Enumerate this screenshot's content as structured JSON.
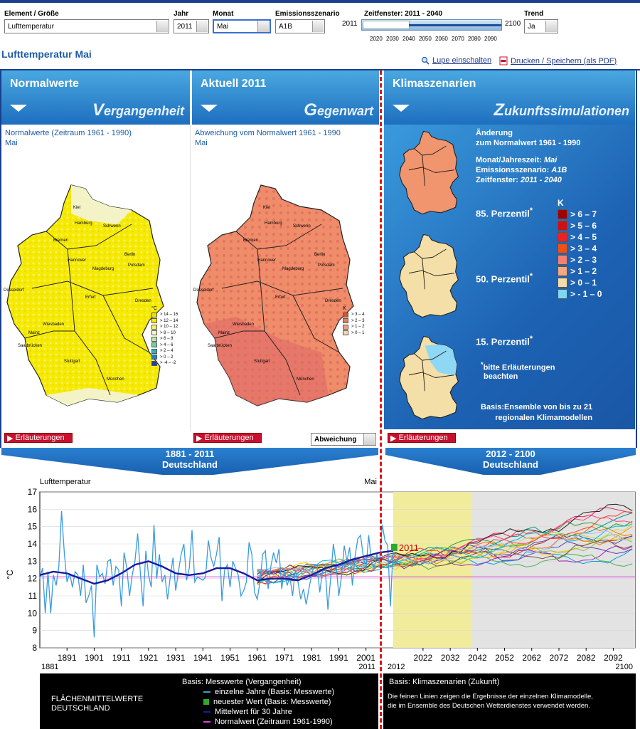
{
  "controls": {
    "element_label": "Element / Größe",
    "element_value": "Lufttemperatur",
    "year_label": "Jahr",
    "year_value": "2011",
    "month_label": "Monat",
    "month_value": "Mai",
    "scenario_label": "Emissionsszenario",
    "scenario_value": "A1B",
    "window_label": "Zeitfenster: 2011 - 2040",
    "window_min": "2011",
    "window_max": "2100",
    "window_ticks": [
      "2020",
      "2030",
      "2040",
      "2050",
      "2060",
      "2070",
      "2080",
      "2090"
    ],
    "trend_label": "Trend",
    "trend_value": "Ja"
  },
  "page_title": "Lufttemperatur Mai",
  "tools": {
    "zoom": "Lupe einschalten",
    "print": "Drucken / Speichern (als PDF)"
  },
  "panels": {
    "normal": {
      "title": "Normalwerte",
      "subtitle_first": "V",
      "subtitle_rest": "ergangenheit",
      "desc_line1": "Normalwerte (Zeitraum 1961 - 1990)",
      "desc_line2": "Mai",
      "unit": "°C",
      "legend": [
        "> 14 – 16",
        "> 12 – 14",
        "> 10 – 12",
        "> 8 – 10",
        "> 6 – 8",
        "> 4 – 6",
        "> 2 – 4",
        "> 0 – 2",
        "> -4 – -2"
      ]
    },
    "current": {
      "title": "Aktuell 2011",
      "subtitle_first": "G",
      "subtitle_rest": "egenwart",
      "desc_line1": "Abweichung vom Normalwert 1961 - 1990",
      "desc_line2": "Mai",
      "unit": "K",
      "legend": [
        "> 3 – 4",
        "> 2 – 3",
        "> 1 – 2",
        "> 0 – 1"
      ],
      "toggle": "Abweichung"
    },
    "climate": {
      "title": "Klimaszenarien",
      "subtitle_first": "Z",
      "subtitle_rest": "ukunftssimulationen",
      "change_line1": "Änderung",
      "change_line2": "zum Normalwert 1961 - 1990",
      "season_label": "Monat/Jahreszeit: ",
      "season_value": "Mai",
      "scenario_label": "Emissionsszenario: ",
      "scenario_value": "A1B",
      "window_label": "Zeitfenster: ",
      "window_value": "2011 - 2040",
      "p85": "85. Perzentil",
      "p50": "50. Perzentil",
      "p15": "15. Perzentil",
      "footnote_line1": "bitte Erläuterungen",
      "footnote_line2": "beachten",
      "basis_line1": "Basis:Ensemble von bis zu 21",
      "basis_line2": "regionalen Klimamodellen",
      "unit": "K",
      "legend": [
        "> 6 – 7",
        "> 5 – 6",
        "> 4 – 5",
        "> 3 – 4",
        "> 2 – 3",
        "> 1 – 2",
        "> 0 – 1",
        "> - 1 – 0"
      ]
    }
  },
  "explain_button": "Erläuterungen",
  "banner_left": {
    "line1": "1881 - 2011",
    "line2": "Deutschland"
  },
  "banner_right": {
    "line1": "2012 - 2100",
    "line2": "Deutschland"
  },
  "chart_data": {
    "type": "line",
    "title": "Lufttemperatur",
    "month": "Mai",
    "ylabel": "°C",
    "ylim": [
      8,
      17
    ],
    "xlim": [
      1881,
      2100
    ],
    "yticks": [
      8,
      9,
      10,
      11,
      12,
      13,
      14,
      15,
      16,
      17
    ],
    "xticks_past": [
      "1891",
      "1901",
      "1911",
      "1921",
      "1931",
      "1941",
      "1951",
      "1961",
      "1971",
      "1981",
      "1991",
      "2001"
    ],
    "xticks_future": [
      "2022",
      "2032",
      "2042",
      "2052",
      "2062",
      "2072",
      "2082",
      "2092"
    ],
    "x_start_label": "1881",
    "x_end_past_label": "2011",
    "x_start_future_label": "2012",
    "x_end_label": "2100",
    "latest_label": "2011",
    "normal_value": 12.1,
    "series": [
      {
        "name": "einzelne Jahre (Basis: Messwerte)",
        "x": [
          1881,
          1882,
          1883,
          1884,
          1885,
          1886,
          1887,
          1888,
          1889,
          1890,
          1891,
          1892,
          1893,
          1894,
          1895,
          1896,
          1897,
          1898,
          1899,
          1900,
          1901,
          1902,
          1903,
          1904,
          1905,
          1906,
          1907,
          1908,
          1909,
          1910,
          1911,
          1912,
          1913,
          1914,
          1915,
          1916,
          1917,
          1918,
          1919,
          1920,
          1921,
          1922,
          1923,
          1924,
          1925,
          1926,
          1927,
          1928,
          1929,
          1930,
          1931,
          1932,
          1933,
          1934,
          1935,
          1936,
          1937,
          1938,
          1939,
          1940,
          1941,
          1942,
          1943,
          1944,
          1945,
          1946,
          1947,
          1948,
          1949,
          1950,
          1951,
          1952,
          1953,
          1954,
          1955,
          1956,
          1957,
          1958,
          1959,
          1960,
          1961,
          1962,
          1963,
          1964,
          1965,
          1966,
          1967,
          1968,
          1969,
          1970,
          1971,
          1972,
          1973,
          1974,
          1975,
          1976,
          1977,
          1978,
          1979,
          1980,
          1981,
          1982,
          1983,
          1984,
          1985,
          1986,
          1987,
          1988,
          1989,
          1990,
          1991,
          1992,
          1993,
          1994,
          1995,
          1996,
          1997,
          1998,
          1999,
          2000,
          2001,
          2002,
          2003,
          2004,
          2005,
          2006,
          2007,
          2008,
          2009,
          2010,
          2011
        ],
        "values": [
          12.0,
          12.6,
          10.0,
          12.4,
          10.0,
          12.2,
          11.6,
          12.7,
          15.9,
          13.5,
          11.8,
          12.3,
          11.5,
          12.4,
          12.2,
          11.0,
          12.8,
          10.6,
          11.0,
          11.6,
          8.6,
          12.8,
          12.1,
          12.3,
          11.7,
          13.0,
          13.1,
          11.6,
          12.7,
          12.5,
          10.4,
          13.5,
          12.6,
          11.0,
          12.2,
          13.0,
          14.6,
          12.3,
          10.4,
          13.6,
          12.2,
          11.5,
          15.1,
          12.0,
          13.4,
          11.8,
          12.2,
          10.8,
          12.1,
          13.2,
          11.3,
          12.4,
          13.4,
          14.0,
          11.9,
          12.6,
          14.8,
          11.8,
          12.1,
          12.0,
          11.9,
          12.1,
          14.2,
          13.2,
          12.7,
          13.4,
          14.4,
          10.7,
          12.5,
          12.8,
          11.5,
          13.0,
          12.6,
          12.2,
          11.0,
          11.3,
          11.8,
          14.1,
          13.4,
          11.2,
          10.8,
          11.8,
          13.4,
          13.6,
          11.4,
          12.7,
          13.5,
          12.9,
          13.7,
          11.4,
          12.5,
          11.6,
          12.1,
          11.0,
          12.5,
          11.8,
          10.8,
          11.4,
          10.5,
          11.4,
          12.2,
          12.8,
          12.8,
          11.2,
          12.4,
          12.6,
          10.2,
          12.0,
          14.0,
          12.9,
          11.0,
          12.1,
          13.9,
          13.0,
          13.8,
          11.6,
          13.3,
          14.3,
          14.5,
          13.3,
          12.5,
          14.5,
          13.0,
          12.6,
          13.4,
          12.9,
          15.1,
          14.2,
          13.9,
          10.4,
          13.8
        ]
      },
      {
        "name": "neuester Wert (Basis: Messwerte)",
        "x": [
          2011
        ],
        "values": [
          13.8
        ]
      },
      {
        "name": "Mittelwert für 30 Jahre",
        "x": [
          1881,
          1886,
          1891,
          1896,
          1901,
          1906,
          1911,
          1916,
          1921,
          1926,
          1931,
          1936,
          1941,
          1946,
          1951,
          1956,
          1961,
          1966,
          1971,
          1976,
          1981,
          1986,
          1991,
          1996,
          2001,
          2006,
          2011
        ],
        "values": [
          12.2,
          12.4,
          12.3,
          12.0,
          11.7,
          11.9,
          12.3,
          12.8,
          13.0,
          12.7,
          12.3,
          12.2,
          12.3,
          12.6,
          12.6,
          12.3,
          11.9,
          12.0,
          12.0,
          11.9,
          12.2,
          12.6,
          12.8,
          13.1,
          13.3,
          13.5,
          13.6
        ]
      },
      {
        "name": "Normalwert (Zeitraum 1961-1990)",
        "x": [
          1881,
          2100
        ],
        "values": [
          12.1,
          12.1
        ]
      }
    ],
    "ensemble_colors": [
      "#ff6f00",
      "#2aa52a",
      "#cc2020",
      "#00a0e0",
      "#9c27b0",
      "#f0d000",
      "#e91e63",
      "#4caf50",
      "#3f51b5",
      "#ff9800",
      "#009688",
      "#8bc34a",
      "#795548",
      "#ff4081",
      "#673ab7",
      "#cddc39",
      "#00bcd4",
      "#f44336",
      "#222222",
      "#a0c0ff"
    ],
    "window_highlight": [
      2011,
      2040
    ]
  },
  "legend": {
    "flaechen_line1": "FLÄCHENMITTELWERTE",
    "flaechen_line2": "DEUTSCHLAND",
    "basis_past": "Basis: Messwerte (Vergangenheit)",
    "item1": "einzelne Jahre (Basis: Messwerte)",
    "item2": "neuester Wert (Basis: Messwerte)",
    "item3": "Mittelwert für 30 Jahre",
    "item4": "Normalwert (Zeitraum 1961-1990)",
    "basis_future": "Basis: Klimaszenarien (Zukunft)",
    "future_note_line1": "Die feinen Linien zeigen die Ergebnisse der einzelnen Klimamodelle,",
    "future_note_line2": "die im Ensemble des Deutschen Wetterdienstes verwendet werden.",
    "colors": {
      "single": "#3a9be0",
      "latest": "#2ea82e",
      "mean": "#1a1aa0",
      "normal": "#e040e0"
    }
  },
  "map_labels": {
    "cities": [
      "Kiel",
      "Hamburg",
      "Schwerin",
      "Bremen",
      "Berlin",
      "Hannover",
      "Potsdam",
      "Magdeburg",
      "Düsseldorf",
      "Erfurt",
      "Dresden",
      "Wiesbaden",
      "Mainz",
      "Saarbrücken",
      "Stuttgart",
      "München"
    ]
  }
}
